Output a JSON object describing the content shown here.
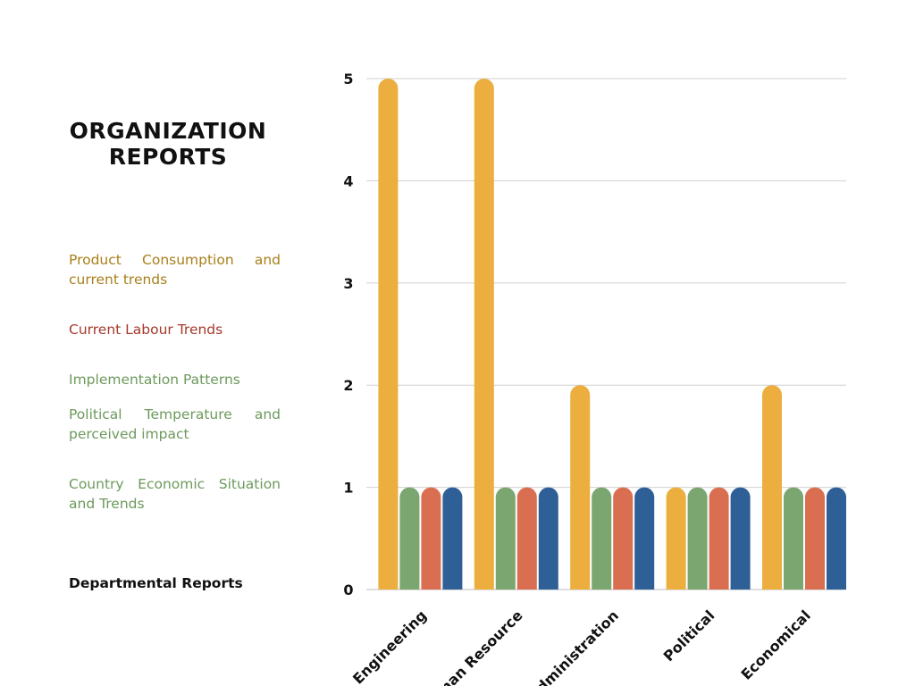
{
  "page": {
    "title": "ORGANIZATION REPORTS",
    "legend": [
      {
        "label": "Product Consumption and current trends",
        "color": "#a8801a"
      },
      {
        "label": "Current Labour Trends",
        "color": "#a5392b"
      },
      {
        "label": "Implementation Patterns",
        "color": "#6c9a5c"
      },
      {
        "label": "Political Temperature and perceived impact",
        "color": "#6c9a5c"
      },
      {
        "label": "Country Economic Situation and Trends",
        "color": "#6c9a5c"
      }
    ],
    "footer_label": "Departmental Reports"
  },
  "chart_data": {
    "type": "bar",
    "categories": [
      "Engineering",
      "Human Resource",
      "Administration",
      "Political",
      "Economical"
    ],
    "series": [
      {
        "values": [
          5,
          5,
          2,
          1,
          2
        ],
        "color": "#ebae3f"
      },
      {
        "values": [
          1,
          1,
          1,
          1,
          1
        ],
        "color": "#7ca670"
      },
      {
        "values": [
          1,
          1,
          1,
          1,
          1
        ],
        "color": "#da6e51"
      },
      {
        "values": [
          1,
          1,
          1,
          1,
          1
        ],
        "color": "#2f5f97"
      }
    ],
    "yticks": [
      0,
      1,
      2,
      3,
      4,
      5
    ],
    "ylim": [
      0,
      5
    ],
    "grid": true
  }
}
